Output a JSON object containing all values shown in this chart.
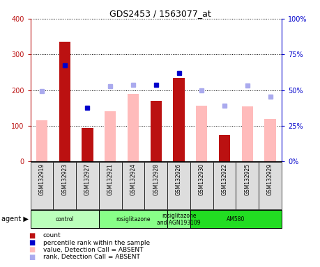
{
  "title": "GDS2453 / 1563077_at",
  "samples": [
    "GSM132919",
    "GSM132923",
    "GSM132927",
    "GSM132921",
    "GSM132924",
    "GSM132928",
    "GSM132926",
    "GSM132930",
    "GSM132922",
    "GSM132925",
    "GSM132929"
  ],
  "count_values": [
    null,
    335,
    95,
    null,
    null,
    170,
    235,
    null,
    75,
    null,
    null
  ],
  "count_absent_values": [
    115,
    null,
    null,
    140,
    190,
    null,
    null,
    157,
    null,
    155,
    120
  ],
  "rank_values": [
    null,
    270,
    150,
    null,
    null,
    215,
    247,
    null,
    null,
    null,
    null
  ],
  "rank_absent_values": [
    197,
    null,
    null,
    210,
    215,
    null,
    null,
    200,
    157,
    213,
    182
  ],
  "agent_groups": [
    {
      "label": "control",
      "start": 0,
      "end": 3,
      "color": "#bbffbb"
    },
    {
      "label": "rosiglitazone",
      "start": 3,
      "end": 6,
      "color": "#88ff88"
    },
    {
      "label": "rosiglitazone\nand AGN193109",
      "start": 6,
      "end": 7,
      "color": "#88ff88"
    },
    {
      "label": "AM580",
      "start": 7,
      "end": 11,
      "color": "#22dd22"
    }
  ],
  "ylim_left": [
    0,
    400
  ],
  "ylim_right": [
    0,
    100
  ],
  "yticks_left": [
    0,
    100,
    200,
    300,
    400
  ],
  "yticks_right": [
    0,
    25,
    50,
    75,
    100
  ],
  "ytick_labels_right": [
    "0%",
    "25%",
    "50%",
    "75%",
    "100%"
  ],
  "bar_width": 0.5,
  "count_color": "#bb1111",
  "count_absent_color": "#ffbbbb",
  "rank_color": "#0000cc",
  "rank_absent_color": "#aaaaee",
  "background_color": "#ffffff",
  "plot_bg_color": "#ffffff",
  "sample_bg": "#dddddd"
}
